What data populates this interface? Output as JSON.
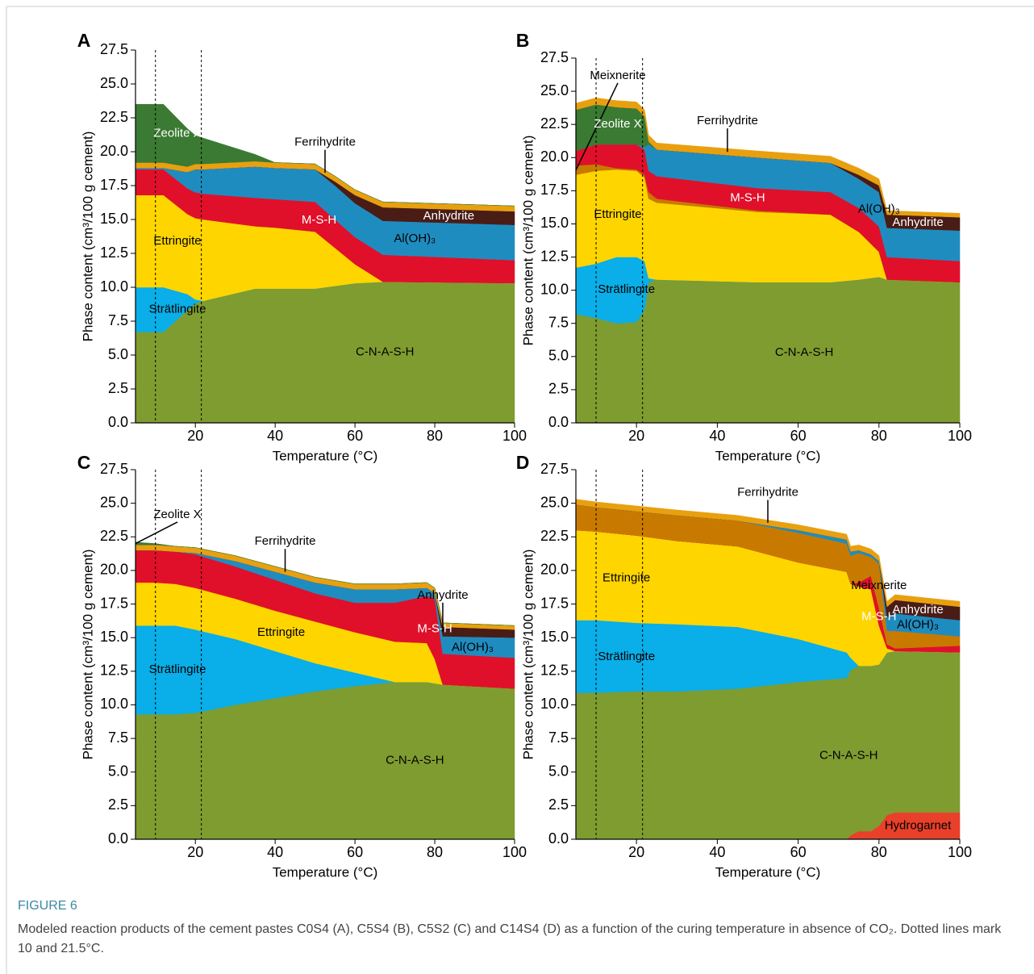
{
  "figure": {
    "label": "FIGURE 6",
    "caption": "Modeled reaction products of the cement pastes C0S4 (A), C5S4 (B), C5S2 (C) and C14S4 (D) as a function of the curing temperature in absence of CO₂. Dotted lines mark 10 and 21.5°C."
  },
  "chart_data": [
    {
      "type": "area",
      "panel": "A",
      "xlabel": "Temperature (°C)",
      "ylabel": "Phase content (cm³/100 g cement)",
      "xlim": [
        5,
        100
      ],
      "ylim": [
        0,
        27.5
      ],
      "xticks": [
        20,
        40,
        60,
        80,
        100
      ],
      "yticks": [
        {
          "value": 0,
          "label": "0.0"
        },
        2.5,
        {
          "value": 5,
          "label": "5.0"
        },
        7.5,
        {
          "value": 10,
          "label": "10.0"
        },
        12.5,
        {
          "value": 15,
          "label": "15.0"
        },
        17.5,
        {
          "value": 20,
          "label": "20.0"
        },
        22.5,
        {
          "value": 25,
          "label": "25.0"
        },
        27.5
      ],
      "vlines": [
        10,
        21.5
      ],
      "x": [
        5,
        12,
        18,
        20,
        22,
        35,
        40,
        50,
        55,
        60,
        67,
        100
      ],
      "series": [
        {
          "name": "C-N-A-S-H",
          "color": "#7f9c30",
          "values": [
            6.7,
            6.7,
            8.3,
            8.8,
            9.0,
            9.9,
            9.9,
            9.9,
            10.1,
            10.3,
            10.4,
            10.3
          ]
        },
        {
          "name": "Strätlingite",
          "color": "#0aaee8",
          "values": [
            3.3,
            3.3,
            1.2,
            0.3,
            0,
            0,
            0,
            0,
            0,
            0,
            0,
            0
          ]
        },
        {
          "name": "Ettringite",
          "color": "#ffd500",
          "values": [
            6.8,
            6.8,
            5.9,
            6.0,
            6.0,
            4.6,
            4.5,
            4.2,
            2.8,
            1.4,
            0,
            0
          ]
        },
        {
          "name": "M-S-H",
          "color": "#e0102a",
          "values": [
            1.9,
            1.9,
            1.9,
            1.9,
            1.9,
            2.1,
            2.1,
            2.2,
            2.1,
            2.0,
            2.0,
            1.7
          ]
        },
        {
          "name": "Al(OH)₃",
          "color": "#1f8cc0",
          "values": [
            0.1,
            0.1,
            1.2,
            1.7,
            1.8,
            2.3,
            2.3,
            2.4,
            2.5,
            2.5,
            2.5,
            2.6
          ]
        },
        {
          "name": "Anhydrite",
          "color": "#4a1c16",
          "values": [
            0,
            0,
            0,
            0,
            0,
            0,
            0,
            0,
            0.3,
            0.6,
            1.0,
            1.0
          ]
        },
        {
          "name": "Ferrihydrite",
          "color": "#e8a010",
          "values": [
            0.4,
            0.4,
            0.4,
            0.4,
            0.4,
            0.4,
            0.4,
            0.4,
            0.4,
            0.4,
            0.4,
            0.4
          ]
        },
        {
          "name": "Zeolite X",
          "color": "#3a7a32",
          "values": [
            4.3,
            4.3,
            2.8,
            2.1,
            1.9,
            0.5,
            0,
            0,
            0,
            0,
            0,
            0
          ]
        }
      ]
    },
    {
      "type": "area",
      "panel": "B",
      "xlabel": "Temperature (°C)",
      "ylabel": "Phase content (cm³/100 g cement)",
      "xlim": [
        5,
        100
      ],
      "ylim": [
        0,
        27.5
      ],
      "xticks": [
        20,
        40,
        60,
        80,
        100
      ],
      "yticks": [
        {
          "value": 0,
          "label": "0.0"
        },
        2.5,
        {
          "value": 5,
          "label": "5.0"
        },
        7.5,
        {
          "value": 10,
          "label": "10.0"
        },
        12.5,
        {
          "value": 15,
          "label": "15.0"
        },
        17.5,
        {
          "value": 20,
          "label": "20.0"
        },
        22.5,
        {
          "value": 25,
          "label": "25.0"
        },
        27.5
      ],
      "vlines": [
        10,
        21.5
      ],
      "x": [
        5,
        10,
        15,
        20,
        22,
        23,
        25,
        50,
        68,
        75,
        80,
        82,
        100
      ],
      "series": [
        {
          "name": "C-N-A-S-H",
          "color": "#7f9c30",
          "values": [
            8.2,
            7.9,
            7.5,
            7.6,
            8.5,
            10.6,
            10.8,
            10.6,
            10.6,
            10.8,
            11.0,
            10.8,
            10.6
          ]
        },
        {
          "name": "Strätlingite",
          "color": "#0aaee8",
          "values": [
            3.5,
            4.1,
            5.0,
            4.9,
            3.7,
            0.3,
            0,
            0,
            0,
            0,
            0,
            0,
            0
          ]
        },
        {
          "name": "Ettringite",
          "color": "#ffd500",
          "values": [
            7.0,
            7.0,
            6.6,
            6.5,
            6.3,
            6.0,
            5.8,
            5.3,
            5.1,
            3.6,
            1.9,
            0,
            0
          ]
        },
        {
          "name": "Meixnerite",
          "color": "#c87a00",
          "values": [
            0.7,
            0.5,
            0.1,
            0.1,
            0.2,
            0.5,
            0.3,
            0.1,
            0,
            0,
            0,
            0,
            0
          ]
        },
        {
          "name": "M-S-H",
          "color": "#e0102a",
          "values": [
            1.1,
            1.5,
            1.8,
            1.9,
            1.9,
            1.6,
            1.7,
            1.7,
            1.7,
            1.8,
            1.9,
            1.7,
            1.6
          ]
        },
        {
          "name": "Al(OH)₃",
          "color": "#1f8cc0",
          "values": [
            0,
            0,
            0,
            0,
            0.2,
            2.0,
            2.0,
            2.3,
            2.2,
            2.2,
            2.6,
            2.2,
            2.3
          ]
        },
        {
          "name": "Zeolite X",
          "color": "#3a7a32",
          "values": [
            3.1,
            3.0,
            2.8,
            2.7,
            2.3,
            0.2,
            0,
            0,
            0,
            0,
            0,
            0,
            0
          ]
        },
        {
          "name": "Anhydrite",
          "color": "#4a1c16",
          "values": [
            0,
            0,
            0,
            0,
            0,
            0,
            0,
            0,
            0,
            0.3,
            0.5,
            1.0,
            1.0
          ]
        },
        {
          "name": "Ferrihydrite",
          "color": "#e8a010",
          "values": [
            0.5,
            0.5,
            0.5,
            0.5,
            0.5,
            0.5,
            0.5,
            0.5,
            0.5,
            0.5,
            0.5,
            0.3,
            0.3
          ]
        }
      ]
    },
    {
      "type": "area",
      "panel": "C",
      "xlabel": "Temperature (°C)",
      "ylabel": "Phase content (cm³/100 g cement)",
      "xlim": [
        5,
        100
      ],
      "ylim": [
        0,
        27.5
      ],
      "xticks": [
        20,
        40,
        60,
        80,
        100
      ],
      "yticks": [
        {
          "value": 0,
          "label": "0.0"
        },
        2.5,
        {
          "value": 5,
          "label": "5.0"
        },
        7.5,
        {
          "value": 10,
          "label": "10.0"
        },
        12.5,
        {
          "value": 15,
          "label": "15.0"
        },
        17.5,
        {
          "value": 20,
          "label": "20.0"
        },
        22.5,
        {
          "value": 25,
          "label": "25.0"
        },
        27.5
      ],
      "vlines": [
        10,
        21.5
      ],
      "x": [
        5,
        10,
        15,
        20,
        30,
        40,
        50,
        60,
        70,
        78,
        80,
        82,
        100
      ],
      "series": [
        {
          "name": "C-N-A-S-H",
          "color": "#7f9c30",
          "values": [
            9.3,
            9.3,
            9.3,
            9.4,
            10.0,
            10.5,
            11.0,
            11.4,
            11.7,
            11.7,
            11.6,
            11.5,
            11.2
          ]
        },
        {
          "name": "Strätlingite",
          "color": "#0aaee8",
          "values": [
            6.6,
            6.6,
            6.6,
            6.2,
            4.9,
            3.5,
            2.1,
            1.0,
            0,
            0,
            0,
            0,
            0
          ]
        },
        {
          "name": "Ettringite",
          "color": "#ffd500",
          "values": [
            3.2,
            3.2,
            3.1,
            3.1,
            3.0,
            3.0,
            3.1,
            3.0,
            3.0,
            2.9,
            1.8,
            0,
            0
          ]
        },
        {
          "name": "M-S-H",
          "color": "#e0102a",
          "values": [
            2.4,
            2.4,
            2.4,
            2.5,
            2.4,
            2.3,
            2.1,
            2.2,
            2.9,
            3.5,
            4.5,
            2.3,
            2.3
          ]
        },
        {
          "name": "Al(OH)₃",
          "color": "#1f8cc0",
          "values": [
            0,
            0,
            0,
            0.1,
            0.4,
            0.6,
            0.8,
            1.0,
            1.0,
            0.6,
            0.4,
            1.3,
            1.5
          ]
        },
        {
          "name": "Anhydrite",
          "color": "#4a1c16",
          "values": [
            0,
            0,
            0,
            0,
            0,
            0,
            0,
            0,
            0,
            0,
            0,
            0.7,
            0.6
          ]
        },
        {
          "name": "Ferrihydrite",
          "color": "#e8a010",
          "values": [
            0.4,
            0.4,
            0.4,
            0.4,
            0.4,
            0.4,
            0.4,
            0.4,
            0.4,
            0.4,
            0.4,
            0.3,
            0.3
          ]
        },
        {
          "name": "Zeolite X",
          "color": "#3a7a32",
          "values": [
            0.2,
            0.1,
            0,
            0,
            0,
            0,
            0,
            0,
            0,
            0,
            0,
            0,
            0
          ]
        }
      ]
    },
    {
      "type": "area",
      "panel": "D",
      "xlabel": "Temperature (°C)",
      "ylabel": "Phase content (cm³/100 g cement)",
      "xlim": [
        5,
        100
      ],
      "ylim": [
        0,
        27.5
      ],
      "xticks": [
        20,
        40,
        60,
        80,
        100
      ],
      "yticks": [
        {
          "value": 0,
          "label": "0.0"
        },
        2.5,
        {
          "value": 5,
          "label": "5.0"
        },
        7.5,
        {
          "value": 10,
          "label": "10.0"
        },
        12.5,
        {
          "value": 15,
          "label": "15.0"
        },
        17.5,
        {
          "value": 20,
          "label": "20.0"
        },
        22.5,
        {
          "value": 25,
          "label": "25.0"
        },
        27.5
      ],
      "vlines": [
        10,
        21.5
      ],
      "x": [
        5,
        10,
        20,
        30,
        45,
        60,
        72,
        73,
        75,
        78,
        80,
        82,
        84,
        100
      ],
      "series": [
        {
          "name": "Hydrogarnet",
          "color": "#e8402a",
          "values": [
            0,
            0,
            0,
            0,
            0,
            0,
            0,
            0.3,
            0.6,
            0.6,
            1.0,
            1.8,
            2.0,
            2.0
          ]
        },
        {
          "name": "C-N-A-S-H",
          "color": "#7f9c30",
          "values": [
            10.9,
            10.9,
            11.0,
            11.0,
            11.2,
            11.7,
            12.0,
            12.3,
            12.3,
            12.3,
            12.0,
            12.1,
            12.0,
            11.9
          ]
        },
        {
          "name": "Strätlingite",
          "color": "#0aaee8",
          "values": [
            5.4,
            5.4,
            5.1,
            5.0,
            4.6,
            3.2,
            1.9,
            0.9,
            0,
            0,
            0,
            0,
            0,
            0
          ]
        },
        {
          "name": "Ettringite",
          "color": "#ffd500",
          "values": [
            6.7,
            6.6,
            6.5,
            6.2,
            6.0,
            5.7,
            6.0,
            5.5,
            5.9,
            5.7,
            2.9,
            0.3,
            0,
            0
          ]
        },
        {
          "name": "M-S-H",
          "color": "#e0102a",
          "values": [
            0,
            0,
            0,
            0,
            0,
            0,
            0,
            0,
            0.3,
            1.0,
            1.3,
            0.3,
            0.2,
            0.5
          ]
        },
        {
          "name": "Meixnerite",
          "color": "#c87a00",
          "values": [
            1.9,
            1.8,
            1.8,
            1.9,
            1.9,
            2.2,
            2.1,
            2.1,
            2.2,
            1.4,
            3.3,
            1.0,
            1.3,
            0.7
          ]
        },
        {
          "name": "Al(OH)₃",
          "color": "#1f8cc0",
          "values": [
            0,
            0,
            0,
            0,
            0,
            0.2,
            0.3,
            0.3,
            0.2,
            0.2,
            0.2,
            1.0,
            1.3,
            1.2
          ]
        },
        {
          "name": "Anhydrite",
          "color": "#4a1c16",
          "values": [
            0,
            0,
            0,
            0,
            0,
            0,
            0,
            0,
            0,
            0,
            0,
            0.8,
            1.0,
            1.0
          ]
        },
        {
          "name": "Ferrihydrite",
          "color": "#e8a010",
          "values": [
            0.4,
            0.4,
            0.4,
            0.4,
            0.4,
            0.4,
            0.4,
            0.4,
            0.4,
            0.4,
            0.4,
            0.4,
            0.4,
            0.4
          ]
        }
      ]
    }
  ]
}
